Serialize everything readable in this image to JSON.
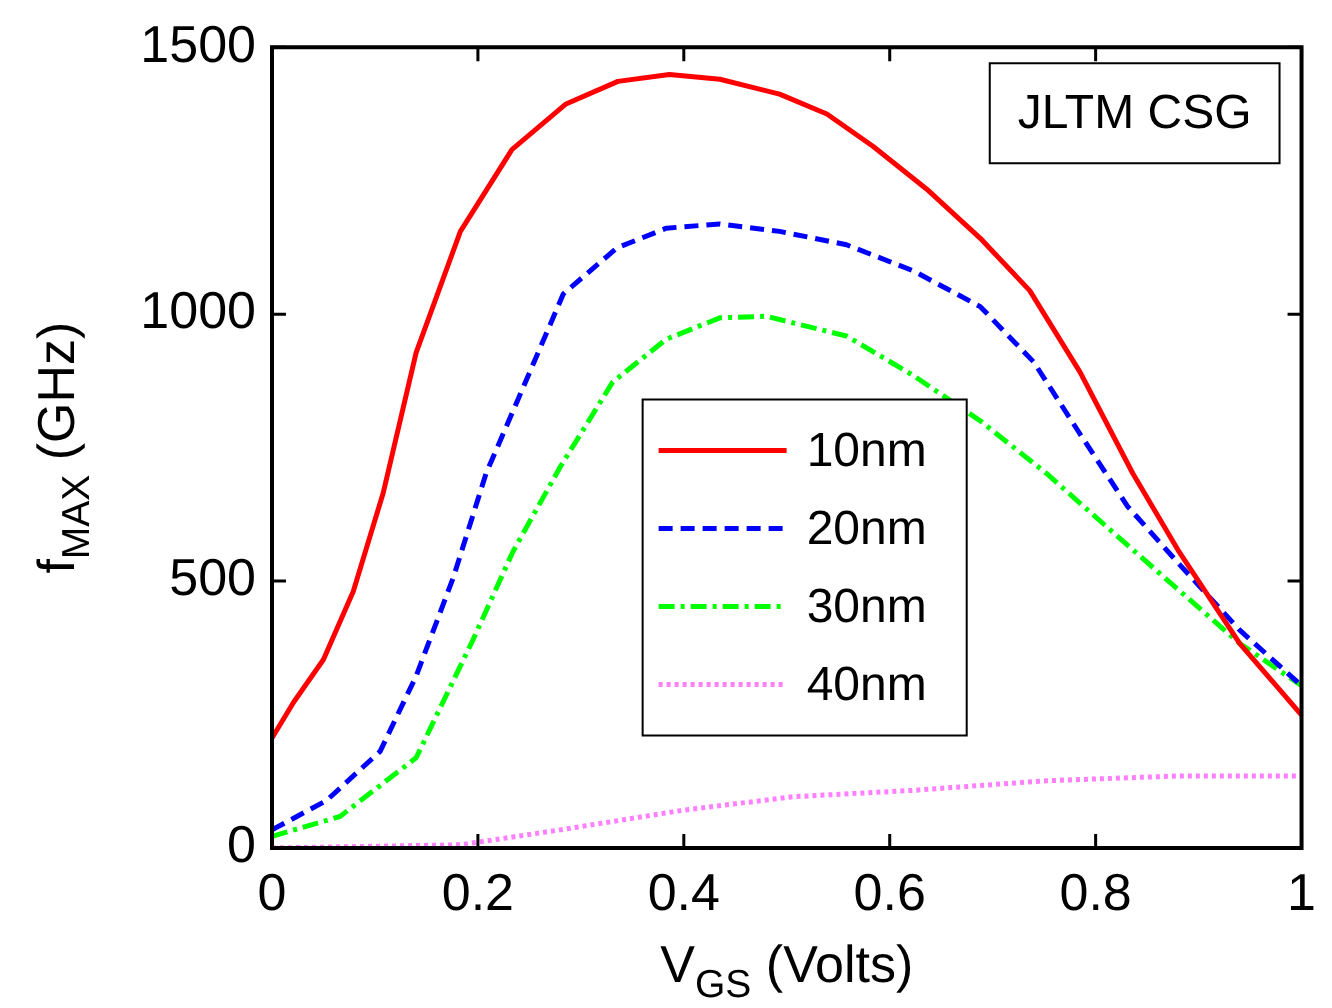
{
  "chart_data": {
    "type": "line",
    "xlabel": "V$_{GS}$ (Volts)",
    "ylabel": "f$_{MAX}$ (GHz)",
    "xlim": [
      0,
      1
    ],
    "xticks": [
      0,
      0.2,
      0.4,
      0.6,
      0.8,
      1
    ],
    "ylim": [
      0,
      1500
    ],
    "yticks": [
      0,
      500,
      1000,
      1500
    ],
    "grid": false,
    "legend": "center",
    "marker": "none",
    "annotations": [
      "JLTM CSG"
    ],
    "series": [
      {
        "name": "10nm",
        "color": "#ff0000",
        "line_style": "solid",
        "x": [
          0,
          0.021,
          0.05,
          0.079,
          0.108,
          0.14,
          0.183,
          0.233,
          0.285,
          0.336,
          0.386,
          0.435,
          0.493,
          0.539,
          0.584,
          0.636,
          0.688,
          0.736,
          0.785,
          0.836,
          0.881,
          0.94,
          1
        ],
        "values": [
          206,
          273,
          353,
          481,
          665,
          928,
          1155,
          1308,
          1393,
          1436,
          1449,
          1440,
          1412,
          1375,
          1314,
          1234,
          1142,
          1044,
          891,
          702,
          555,
          383,
          249
        ]
      },
      {
        "name": "20nm",
        "color": "#0000ff",
        "line_style": "dashed",
        "x": [
          0,
          0.053,
          0.105,
          0.14,
          0.176,
          0.208,
          0.238,
          0.283,
          0.335,
          0.383,
          0.435,
          0.493,
          0.558,
          0.623,
          0.688,
          0.74,
          0.785,
          0.831,
          0.882,
          0.94,
          1
        ],
        "values": [
          34,
          89,
          181,
          322,
          506,
          702,
          836,
          1038,
          1124,
          1161,
          1169,
          1155,
          1130,
          1081,
          1014,
          910,
          775,
          640,
          530,
          408,
          304
        ]
      },
      {
        "name": "30nm",
        "color": "#00ff00",
        "line_style": "dashdot",
        "x": [
          0,
          0.066,
          0.14,
          0.195,
          0.234,
          0.28,
          0.331,
          0.383,
          0.435,
          0.48,
          0.558,
          0.623,
          0.688,
          0.752,
          0.817,
          0.882,
          0.94,
          1
        ],
        "values": [
          22,
          59,
          169,
          389,
          555,
          714,
          873,
          953,
          993,
          996,
          959,
          885,
          800,
          702,
          591,
          481,
          383,
          304
        ]
      },
      {
        "name": "40nm",
        "color": "#ff80ff",
        "line_style": "dotted",
        "x": [
          0,
          0.183,
          0.28,
          0.4,
          0.506,
          0.623,
          0.752,
          0.882,
          1
        ],
        "values": [
          0,
          6,
          34,
          71,
          96,
          108,
          126,
          135,
          135
        ]
      }
    ]
  }
}
